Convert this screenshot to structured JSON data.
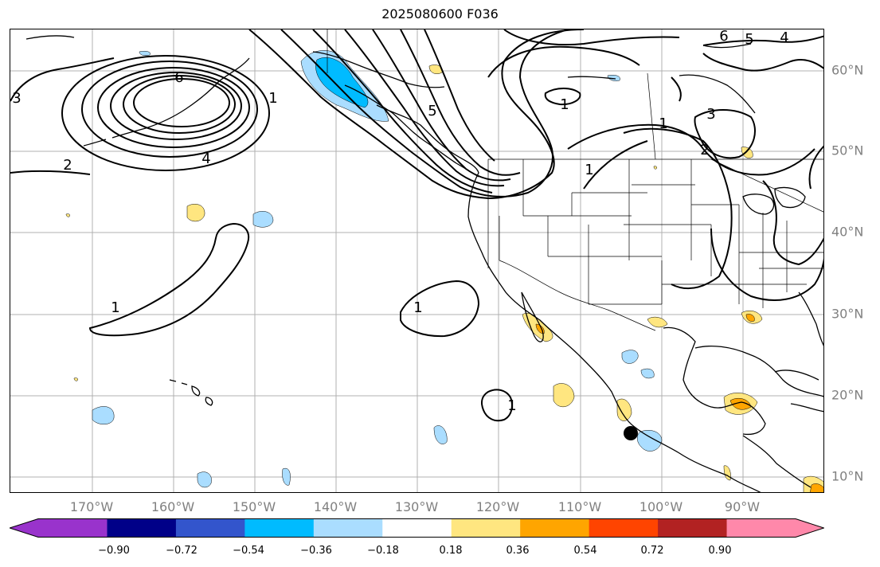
{
  "title": "2025080600 F036",
  "lat_labels": [
    "60°N",
    "50°N",
    "40°N",
    "30°N",
    "20°N",
    "10°N"
  ],
  "lon_labels": [
    "170°W",
    "160°W",
    "150°W",
    "140°W",
    "130°W",
    "120°W",
    "110°W",
    "100°W",
    "90°W"
  ],
  "contour_labels": [
    "1",
    "1",
    "1",
    "1",
    "1",
    "1",
    "1",
    "2",
    "2",
    "3",
    "3",
    "4",
    "4",
    "5",
    "5",
    "6",
    "6"
  ],
  "colorbar": {
    "tick_labels": [
      "−0.90",
      "−0.72",
      "−0.54",
      "−0.36",
      "−0.18",
      "0.18",
      "0.36",
      "0.54",
      "0.72",
      "0.90"
    ],
    "colors": [
      "#9933cc",
      "#000088",
      "#3355cc",
      "#00bbff",
      "#aaddff",
      "#ffffff",
      "#ffe680",
      "#ffa500",
      "#ff4400",
      "#b22222",
      "#ff88aa"
    ]
  },
  "colors": {
    "grid": "#b0b0b0",
    "axis_label": "#808080",
    "positive_light": "#ffe680",
    "positive_mid": "#ffa500",
    "negative_light": "#aaddff",
    "negative_mid": "#00bbff",
    "contour": "#000000"
  },
  "marker": "storm-center-dot"
}
